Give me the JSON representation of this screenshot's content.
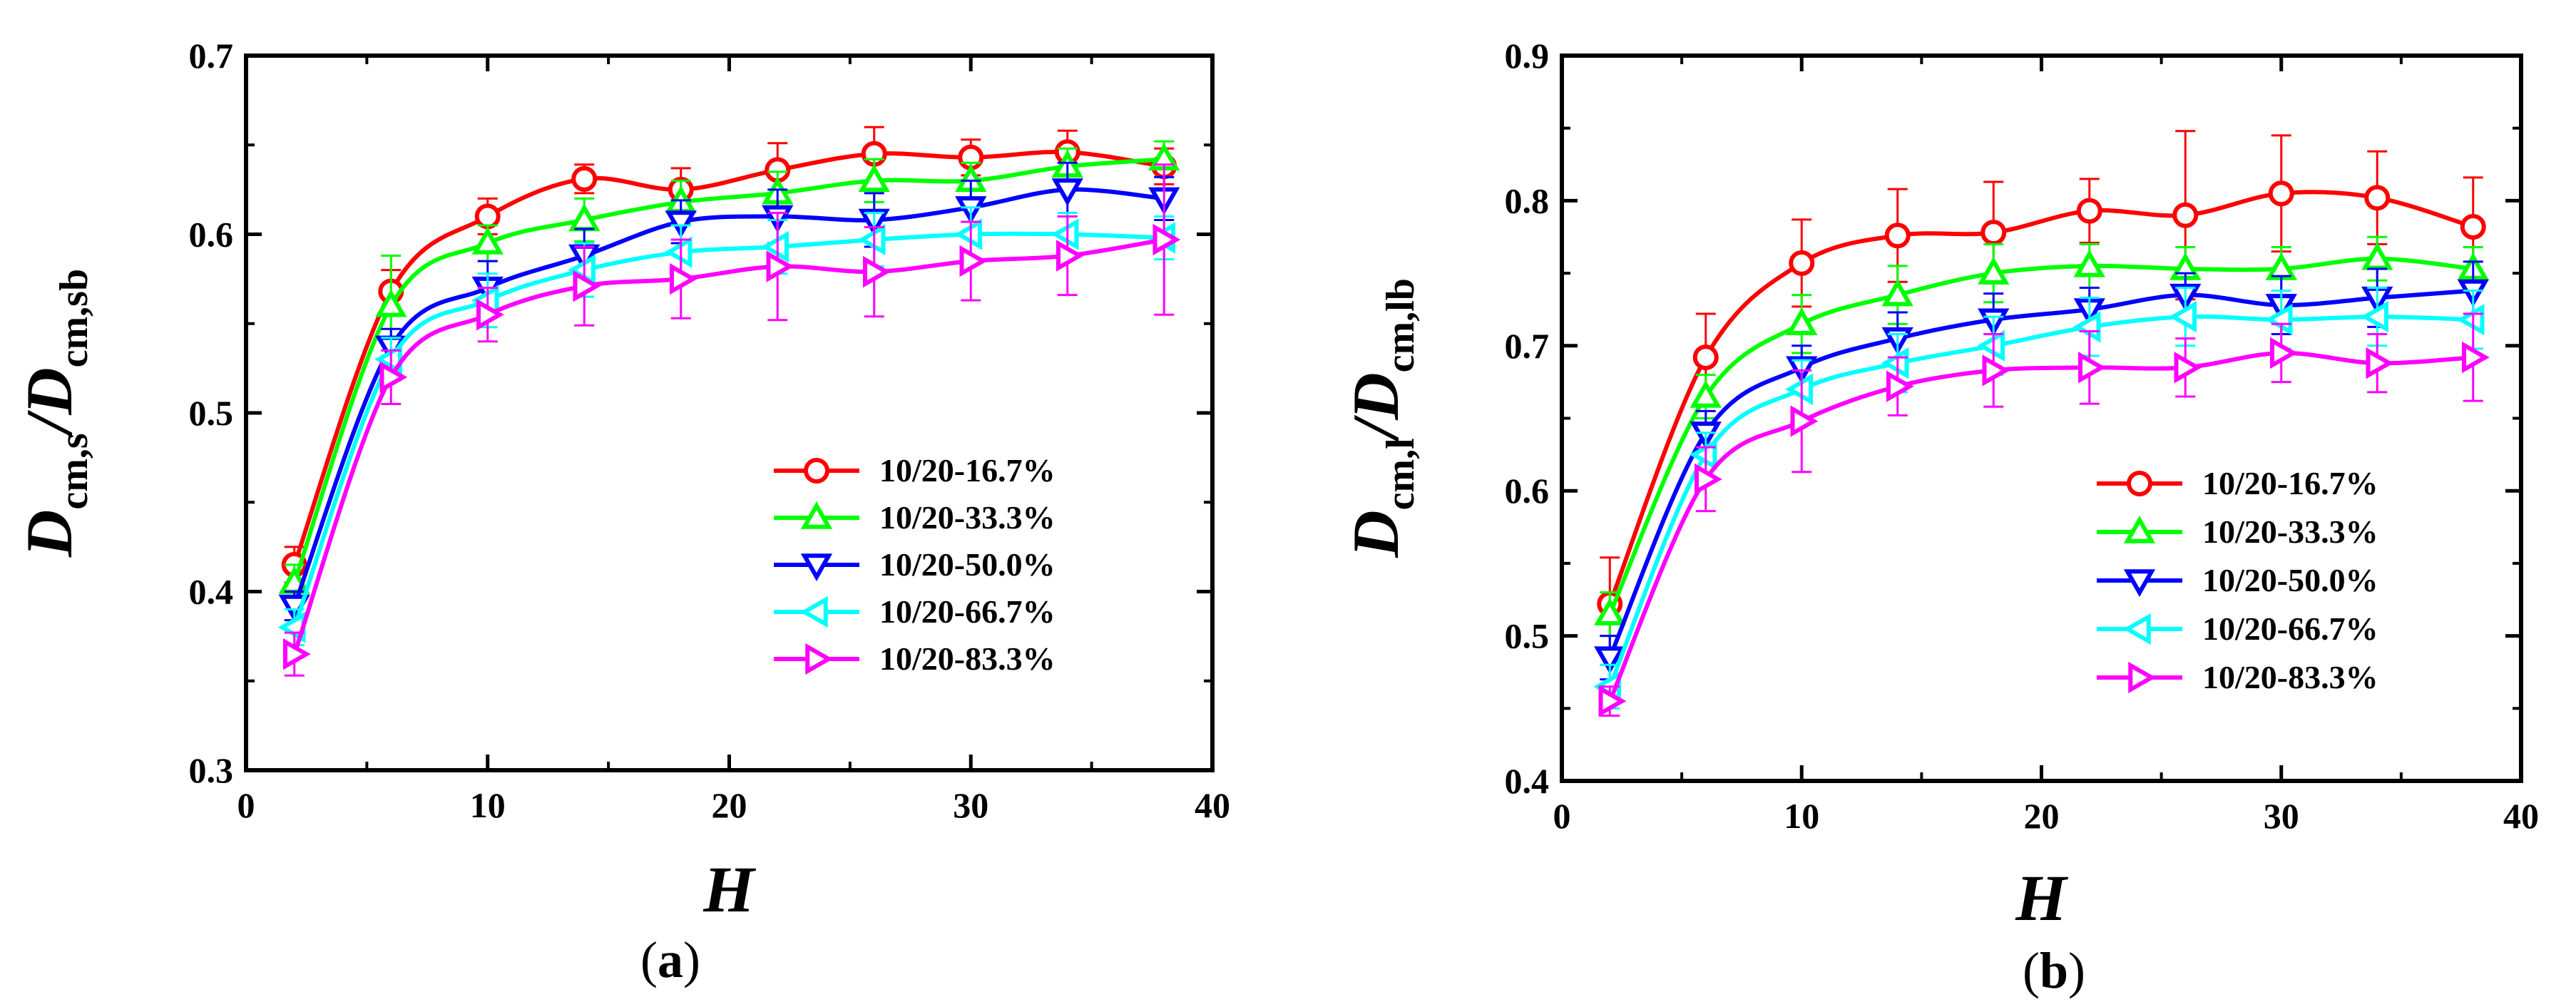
{
  "chart_data": [
    {
      "type": "line",
      "panel_label": {
        "open": "(",
        "letter": "a",
        "close": ")"
      },
      "xlabel": "H",
      "ylabel": {
        "main": "D",
        "sub1": "cm,s",
        "slash": "/",
        "main2": "D",
        "sub2": "cm,sb"
      },
      "xlim": [
        0,
        40
      ],
      "ylim": [
        0.3,
        0.7
      ],
      "xticks": [
        "0",
        "10",
        "20",
        "30",
        "40"
      ],
      "yticks": [
        "0.3",
        "0.4",
        "0.5",
        "0.6",
        "0.7"
      ],
      "x": [
        2,
        6,
        10,
        14,
        18,
        22,
        26,
        30,
        34,
        38
      ],
      "legend_position": "lower-right",
      "series": [
        {
          "name": "10/20-16.7%",
          "color": "#ff0000",
          "marker": "circle",
          "values": [
            0.415,
            0.568,
            0.61,
            0.631,
            0.625,
            0.636,
            0.645,
            0.643,
            0.646,
            0.638
          ],
          "errors": [
            0.01,
            0.012,
            0.01,
            0.008,
            0.012,
            0.015,
            0.015,
            0.01,
            0.012,
            0.01
          ]
        },
        {
          "name": "10/20-33.3%",
          "color": "#00ff00",
          "marker": "triangle-up",
          "values": [
            0.405,
            0.56,
            0.595,
            0.608,
            0.618,
            0.623,
            0.63,
            0.63,
            0.638,
            0.642
          ],
          "errors": [
            0.01,
            0.028,
            0.01,
            0.012,
            0.012,
            0.012,
            0.012,
            0.01,
            0.01,
            0.01
          ]
        },
        {
          "name": "10/20-50.0%",
          "color": "#0000ff",
          "marker": "triangle-down",
          "values": [
            0.392,
            0.537,
            0.57,
            0.588,
            0.607,
            0.61,
            0.608,
            0.615,
            0.625,
            0.62
          ],
          "errors": [
            0.008,
            0.01,
            0.015,
            0.015,
            0.012,
            0.015,
            0.015,
            0.015,
            0.015,
            0.012
          ]
        },
        {
          "name": "10/20-66.7%",
          "color": "#00ffff",
          "marker": "triangle-left",
          "values": [
            0.38,
            0.53,
            0.563,
            0.58,
            0.59,
            0.593,
            0.597,
            0.6,
            0.6,
            0.598
          ],
          "errors": [
            0.01,
            0.012,
            0.015,
            0.015,
            0.015,
            0.015,
            0.015,
            0.015,
            0.012,
            0.012
          ]
        },
        {
          "name": "10/20-83.3%",
          "color": "#ff00ff",
          "marker": "triangle-right",
          "values": [
            0.365,
            0.52,
            0.555,
            0.571,
            0.575,
            0.582,
            0.579,
            0.585,
            0.588,
            0.597
          ],
          "errors": [
            0.012,
            0.015,
            0.015,
            0.022,
            0.022,
            0.03,
            0.025,
            0.022,
            0.022,
            0.042
          ]
        }
      ]
    },
    {
      "type": "line",
      "panel_label": {
        "open": "(",
        "letter": "b",
        "close": ")"
      },
      "xlabel": "H",
      "ylabel": {
        "main": "D",
        "sub1": "cm,l",
        "slash": "/",
        "main2": "D",
        "sub2": "cm,lb"
      },
      "xlim": [
        0,
        40
      ],
      "ylim": [
        0.4,
        0.9
      ],
      "xticks": [
        "0",
        "10",
        "20",
        "30",
        "40"
      ],
      "yticks": [
        "0.4",
        "0.5",
        "0.6",
        "0.7",
        "0.8",
        "0.9"
      ],
      "x": [
        2,
        6,
        10,
        14,
        18,
        22,
        26,
        30,
        34,
        38
      ],
      "legend_position": "lower-right",
      "series": [
        {
          "name": "10/20-16.7%",
          "color": "#ff0000",
          "marker": "circle",
          "values": [
            0.522,
            0.692,
            0.757,
            0.776,
            0.778,
            0.793,
            0.79,
            0.805,
            0.802,
            0.782
          ],
          "errors": [
            0.032,
            0.03,
            0.03,
            0.032,
            0.035,
            0.022,
            0.058,
            0.04,
            0.032,
            0.034
          ]
        },
        {
          "name": "10/20-33.3%",
          "color": "#00ff00",
          "marker": "triangle-up",
          "values": [
            0.515,
            0.665,
            0.715,
            0.735,
            0.75,
            0.755,
            0.753,
            0.753,
            0.76,
            0.753
          ],
          "errors": [
            0.015,
            0.015,
            0.02,
            0.02,
            0.02,
            0.015,
            0.015,
            0.015,
            0.015,
            0.015
          ]
        },
        {
          "name": "10/20-50.0%",
          "color": "#0000ff",
          "marker": "triangle-down",
          "values": [
            0.485,
            0.64,
            0.685,
            0.705,
            0.718,
            0.725,
            0.735,
            0.728,
            0.733,
            0.738
          ],
          "errors": [
            0.015,
            0.015,
            0.015,
            0.018,
            0.018,
            0.015,
            0.015,
            0.02,
            0.02,
            0.02
          ]
        },
        {
          "name": "10/20-66.7%",
          "color": "#00ffff",
          "marker": "triangle-left",
          "values": [
            0.465,
            0.625,
            0.67,
            0.688,
            0.7,
            0.713,
            0.72,
            0.718,
            0.72,
            0.718
          ],
          "errors": [
            0.015,
            0.015,
            0.02,
            0.02,
            0.02,
            0.02,
            0.02,
            0.02,
            0.02,
            0.02
          ]
        },
        {
          "name": "10/20-83.3%",
          "color": "#ff00ff",
          "marker": "triangle-right",
          "values": [
            0.455,
            0.608,
            0.648,
            0.672,
            0.683,
            0.685,
            0.685,
            0.695,
            0.688,
            0.692
          ],
          "errors": [
            0.01,
            0.022,
            0.035,
            0.02,
            0.025,
            0.025,
            0.02,
            0.02,
            0.02,
            0.03
          ]
        }
      ]
    }
  ]
}
